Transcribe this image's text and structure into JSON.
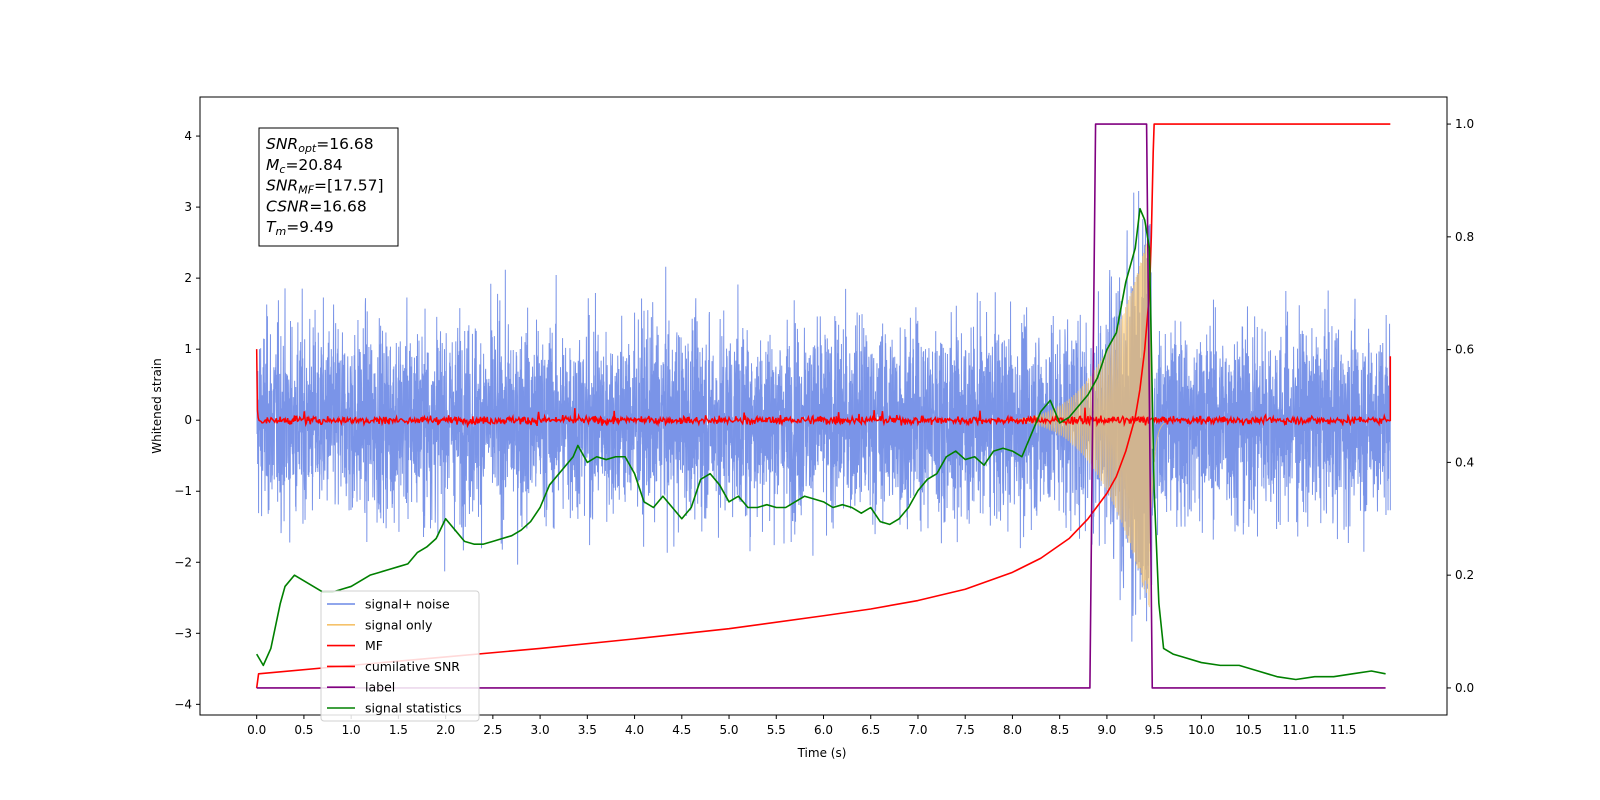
{
  "chart_data": {
    "type": "line",
    "xlabel": "Time (s)",
    "ylabel": "Whitened strain",
    "xlim": [
      -0.6,
      12.6
    ],
    "ylim": [
      -4.15,
      4.55
    ],
    "y2lim": [
      -0.048,
      1.048
    ],
    "x_ticks": [
      "0.0",
      "0.5",
      "1.0",
      "1.5",
      "2.0",
      "2.5",
      "3.0",
      "3.5",
      "4.0",
      "4.5",
      "5.0",
      "5.5",
      "6.0",
      "6.5",
      "7.0",
      "7.5",
      "8.0",
      "8.5",
      "9.0",
      "9.5",
      "10.0",
      "10.5",
      "11.0",
      "11.5"
    ],
    "y_ticks": [
      "4",
      "3",
      "2",
      "1",
      "0",
      "−1",
      "−2",
      "−3",
      "−4"
    ],
    "y2_ticks": [
      "1.0",
      "0.8",
      "0.6",
      "0.4",
      "0.2",
      "0.0"
    ],
    "grid": false,
    "legend": {
      "location": "lower-left",
      "entries": [
        {
          "label": "signal+ noise",
          "color": "#6b88e6"
        },
        {
          "label": "signal only",
          "color": "#f5c26b"
        },
        {
          "label": "MF",
          "color": "#ff0000"
        },
        {
          "label": "cumilative SNR",
          "color": "#ff0000"
        },
        {
          "label": "label",
          "color": "#800080"
        },
        {
          "label": "signal statistics",
          "color": "#008000"
        }
      ]
    },
    "annotation": [
      {
        "main": "SNR",
        "sub": "opt",
        "rest": "=16.68"
      },
      {
        "main": "M",
        "sub": "c",
        "rest": "=20.84"
      },
      {
        "main": "SNR",
        "sub": "MF",
        "rest": "=[17.57]"
      },
      {
        "main": "CSNR",
        "sub": "",
        "rest": "=16.68"
      },
      {
        "main": "T",
        "sub": "m",
        "rest": "=9.49"
      }
    ],
    "series": [
      {
        "name": "signal+ noise",
        "axis": "left",
        "color": "#6b88e6",
        "description": "whitened noise plus signal",
        "noise_envelope": [
          -3.8,
          3.5
        ],
        "x_range": [
          0.0,
          12.0
        ]
      },
      {
        "name": "signal only",
        "axis": "left",
        "color": "#f5c26b",
        "chirp": {
          "start": 7.9,
          "merger": 9.45,
          "end": 9.65,
          "peak_amplitude": 2.5
        }
      },
      {
        "name": "MF",
        "axis": "left",
        "color": "#ff0000",
        "level": 0.0,
        "edge_values": [
          1.0,
          0.9
        ]
      },
      {
        "name": "cumilative SNR",
        "axis": "right",
        "color": "#ff0000",
        "x": [
          0.0,
          0.02,
          1.0,
          2.0,
          3.0,
          4.0,
          5.0,
          6.0,
          6.5,
          7.0,
          7.5,
          8.0,
          8.3,
          8.6,
          8.8,
          9.0,
          9.1,
          9.2,
          9.3,
          9.35,
          9.4,
          9.45,
          9.47,
          9.49,
          9.5,
          12.0
        ],
        "y": [
          0.0,
          0.025,
          0.04,
          0.055,
          0.07,
          0.087,
          0.105,
          0.128,
          0.14,
          0.155,
          0.175,
          0.205,
          0.23,
          0.265,
          0.3,
          0.345,
          0.375,
          0.42,
          0.48,
          0.53,
          0.6,
          0.7,
          0.8,
          0.95,
          1.0,
          1.0
        ]
      },
      {
        "name": "label",
        "axis": "right",
        "color": "#800080",
        "x": [
          0.0,
          8.82,
          8.88,
          9.42,
          9.48,
          11.95
        ],
        "y": [
          0,
          0,
          1,
          1,
          0,
          0
        ]
      },
      {
        "name": "signal statistics",
        "axis": "right",
        "color": "#008000",
        "x": [
          0.0,
          0.07,
          0.15,
          0.25,
          0.3,
          0.4,
          0.5,
          0.6,
          0.7,
          0.8,
          0.9,
          1.0,
          1.1,
          1.2,
          1.3,
          1.4,
          1.5,
          1.6,
          1.7,
          1.8,
          1.9,
          2.0,
          2.1,
          2.2,
          2.3,
          2.4,
          2.5,
          2.6,
          2.7,
          2.8,
          2.9,
          3.0,
          3.1,
          3.2,
          3.3,
          3.35,
          3.4,
          3.5,
          3.6,
          3.7,
          3.8,
          3.9,
          4.0,
          4.1,
          4.2,
          4.3,
          4.4,
          4.5,
          4.6,
          4.7,
          4.8,
          4.9,
          5.0,
          5.1,
          5.2,
          5.3,
          5.4,
          5.5,
          5.6,
          5.7,
          5.8,
          5.9,
          6.0,
          6.1,
          6.2,
          6.3,
          6.4,
          6.5,
          6.6,
          6.7,
          6.8,
          6.9,
          7.0,
          7.1,
          7.2,
          7.3,
          7.4,
          7.5,
          7.6,
          7.7,
          7.8,
          7.9,
          8.0,
          8.1,
          8.2,
          8.3,
          8.4,
          8.5,
          8.6,
          8.7,
          8.8,
          8.9,
          9.0,
          9.1,
          9.2,
          9.3,
          9.35,
          9.4,
          9.45,
          9.5,
          9.55,
          9.6,
          9.7,
          9.8,
          10.0,
          10.2,
          10.4,
          10.6,
          10.8,
          11.0,
          11.2,
          11.4,
          11.6,
          11.8,
          11.95
        ],
        "y": [
          0.06,
          0.04,
          0.07,
          0.15,
          0.18,
          0.2,
          0.19,
          0.18,
          0.17,
          0.17,
          0.175,
          0.18,
          0.19,
          0.2,
          0.205,
          0.21,
          0.215,
          0.22,
          0.24,
          0.25,
          0.265,
          0.3,
          0.28,
          0.26,
          0.255,
          0.255,
          0.26,
          0.265,
          0.27,
          0.28,
          0.295,
          0.32,
          0.36,
          0.38,
          0.4,
          0.41,
          0.43,
          0.4,
          0.41,
          0.405,
          0.41,
          0.41,
          0.38,
          0.33,
          0.32,
          0.34,
          0.32,
          0.3,
          0.32,
          0.37,
          0.38,
          0.36,
          0.33,
          0.34,
          0.32,
          0.32,
          0.325,
          0.32,
          0.32,
          0.33,
          0.34,
          0.335,
          0.33,
          0.32,
          0.325,
          0.32,
          0.31,
          0.32,
          0.295,
          0.29,
          0.3,
          0.32,
          0.35,
          0.37,
          0.38,
          0.41,
          0.42,
          0.405,
          0.41,
          0.395,
          0.42,
          0.425,
          0.42,
          0.41,
          0.45,
          0.49,
          0.51,
          0.47,
          0.48,
          0.5,
          0.52,
          0.55,
          0.6,
          0.63,
          0.72,
          0.78,
          0.85,
          0.83,
          0.78,
          0.35,
          0.15,
          0.07,
          0.06,
          0.055,
          0.045,
          0.04,
          0.04,
          0.03,
          0.02,
          0.015,
          0.02,
          0.02,
          0.025,
          0.03,
          0.025
        ]
      }
    ]
  }
}
